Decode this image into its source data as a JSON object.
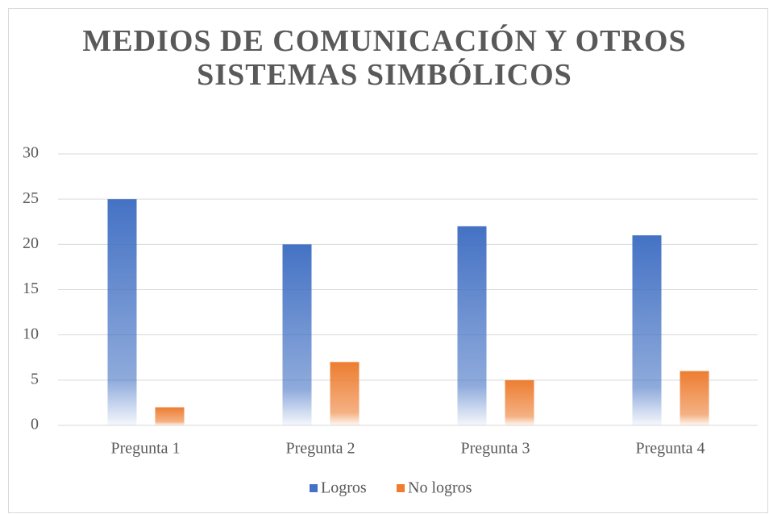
{
  "chart_data": {
    "type": "bar",
    "title": "MEDIOS DE COMUNICACIÓN Y OTROS SISTEMAS SIMBÓLICOS",
    "categories": [
      "Pregunta 1",
      "Pregunta 2",
      "Pregunta 3",
      "Pregunta 4"
    ],
    "series": [
      {
        "name": "Logros",
        "color": "#4472c4",
        "values": [
          25,
          20,
          22,
          21
        ]
      },
      {
        "name": "No logros",
        "color": "#ed7d31",
        "values": [
          2,
          7,
          5,
          6
        ]
      }
    ],
    "ylim": [
      0,
      30
    ],
    "yticks": [
      0,
      5,
      10,
      15,
      20,
      25,
      30
    ],
    "grid": true,
    "legend": "bottom"
  }
}
